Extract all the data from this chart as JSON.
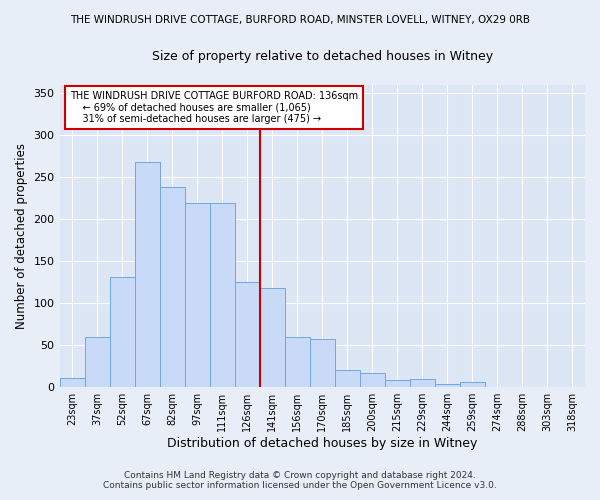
{
  "title_top": "THE WINDRUSH DRIVE COTTAGE, BURFORD ROAD, MINSTER LOVELL, WITNEY, OX29 0RB",
  "title_sub": "Size of property relative to detached houses in Witney",
  "xlabel": "Distribution of detached houses by size in Witney",
  "ylabel": "Number of detached properties",
  "bar_labels": [
    "23sqm",
    "37sqm",
    "52sqm",
    "67sqm",
    "82sqm",
    "97sqm",
    "111sqm",
    "126sqm",
    "141sqm",
    "156sqm",
    "170sqm",
    "185sqm",
    "200sqm",
    "215sqm",
    "229sqm",
    "244sqm",
    "259sqm",
    "274sqm",
    "288sqm",
    "303sqm",
    "318sqm"
  ],
  "bar_values": [
    11,
    60,
    131,
    268,
    238,
    219,
    219,
    125,
    118,
    60,
    57,
    21,
    17,
    9,
    10,
    4,
    6,
    0,
    0,
    0,
    0
  ],
  "bar_color": "#c9daf8",
  "bar_edge_color": "#6fa8dc",
  "vline_x_label": "141sqm",
  "vline_color": "#cc0000",
  "annotation_title": "THE WINDRUSH DRIVE COTTAGE BURFORD ROAD: 136sqm",
  "annotation_line1": "← 69% of detached houses are smaller (1,065)",
  "annotation_line2": "31% of semi-detached houses are larger (475) →",
  "annotation_box_color": "#ffffff",
  "annotation_box_edge": "#cc0000",
  "footer1": "Contains HM Land Registry data © Crown copyright and database right 2024.",
  "footer2": "Contains public sector information licensed under the Open Government Licence v3.0.",
  "bg_color": "#e8eef8",
  "plot_bg_color": "#dce6f5",
  "ylim": [
    0,
    360
  ],
  "yticks": [
    0,
    50,
    100,
    150,
    200,
    250,
    300,
    350
  ]
}
